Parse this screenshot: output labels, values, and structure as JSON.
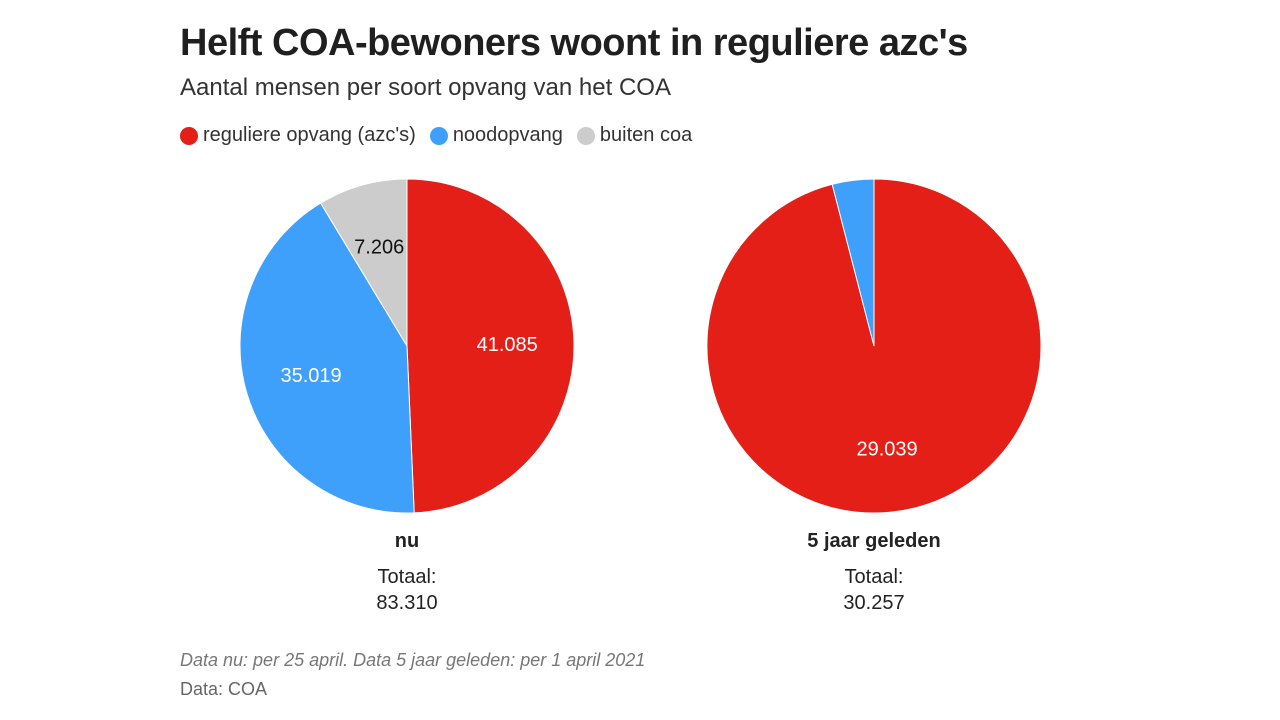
{
  "chart_data": {
    "type": "pie",
    "title": "Helft COA-bewoners woont in reguliere azc's",
    "subtitle": "Aantal mensen per soort opvang van het COA",
    "legend_placement": "top-left",
    "legend": [
      {
        "name": "reguliere opvang (azc's)",
        "color": "#e31f17"
      },
      {
        "name": "noodopvang",
        "color": "#3fa0fb"
      },
      {
        "name": "buiten coa",
        "color": "#cccccc"
      }
    ],
    "pies": [
      {
        "name": "nu",
        "total_label": "Totaal:",
        "total_value": "83.310",
        "slices": [
          {
            "category": "reguliere opvang (azc's)",
            "value": 41085,
            "label": "41.085"
          },
          {
            "category": "noodopvang",
            "value": 35019,
            "label": "35.019"
          },
          {
            "category": "buiten coa",
            "value": 7206,
            "label": "7.206"
          }
        ]
      },
      {
        "name": "5 jaar geleden",
        "total_label": "Totaal:",
        "total_value": "30.257",
        "slices": [
          {
            "category": "reguliere opvang (azc's)",
            "value": 29039,
            "label": "29.039"
          },
          {
            "category": "noodopvang",
            "value": 1218,
            "label": ""
          }
        ]
      }
    ],
    "note": "Data nu: per 25 april. Data 5 jaar geleden: per 1 april 2021",
    "source": "Data: COA"
  }
}
